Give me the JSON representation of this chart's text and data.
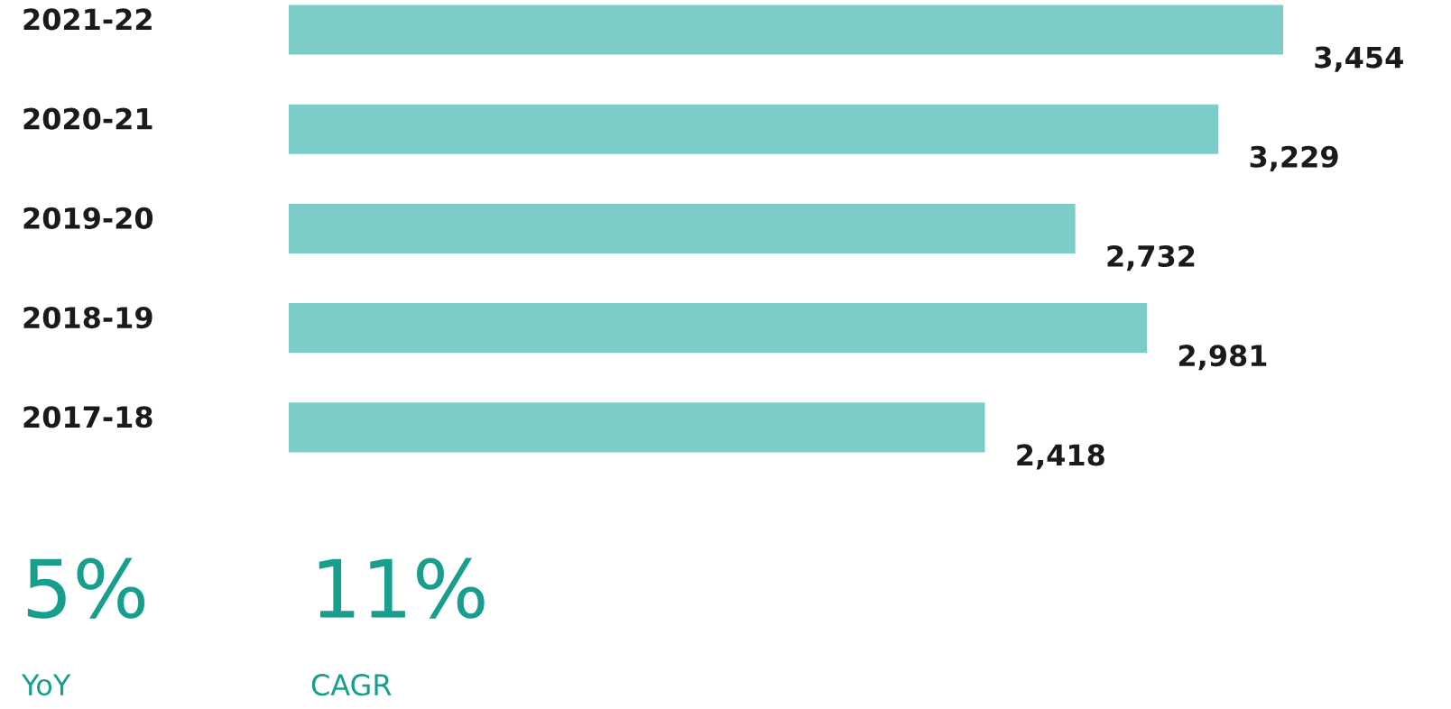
{
  "chart_data": {
    "type": "bar",
    "orientation": "horizontal",
    "categories": [
      "2021-22",
      "2020-21",
      "2019-20",
      "2018-19",
      "2017-18"
    ],
    "values": [
      3454,
      3229,
      2732,
      2981,
      2418
    ],
    "value_labels": [
      "3,454",
      "3,229",
      "2,732",
      "2,981",
      "2,418"
    ],
    "color": "#7ccdc8",
    "annotations": [
      "5%",
      "YoY",
      "11%",
      "CAGR"
    ]
  }
}
